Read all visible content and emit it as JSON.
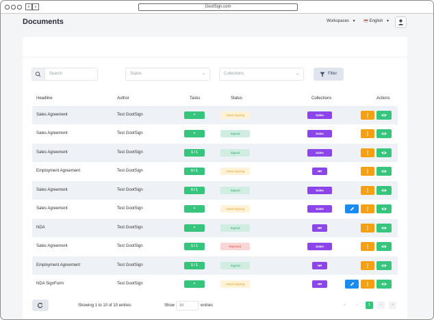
{
  "browser": {
    "url": "GootSign.com"
  },
  "header": {
    "title": "Documents",
    "workspaces_label": "Workspaces",
    "language_label": "English"
  },
  "filters": {
    "search_placeholder": "Search",
    "status_placeholder": "Status",
    "collections_placeholder": "Collections",
    "filter_label": "Filter"
  },
  "table": {
    "columns": [
      "Headline",
      "Author",
      "Tasks",
      "Status",
      "Collections",
      "Actions"
    ],
    "rows": [
      {
        "headline": "Sales Agreement",
        "author": "Test GootSign",
        "task": "+",
        "status": "Await Signing",
        "status_type": "await",
        "collection": "Sales",
        "edit": false
      },
      {
        "headline": "Sales Agreement",
        "author": "Test GootSign",
        "task": "+",
        "status": "Signed",
        "status_type": "signed",
        "collection": "Sales",
        "edit": false
      },
      {
        "headline": "Sales Agreement",
        "author": "Test GootSign",
        "task": "1 / 1",
        "status": "Signed",
        "status_type": "signed",
        "collection": "Sales",
        "edit": false
      },
      {
        "headline": "Employment Agreement",
        "author": "Test GootSign",
        "task": "0 / 1",
        "status": "Await Signing",
        "status_type": "await",
        "collection": "HR",
        "edit": false
      },
      {
        "headline": "Sales Agreement",
        "author": "Test GootSign",
        "task": "0 / 1",
        "status": "Signed",
        "status_type": "signed",
        "collection": "Sales",
        "edit": false
      },
      {
        "headline": "Sales Agreement",
        "author": "Test GootSign",
        "task": "+",
        "status": "Await Signing",
        "status_type": "await",
        "collection": "Sales",
        "edit": true
      },
      {
        "headline": "NDA",
        "author": "Test GootSign",
        "task": "+",
        "status": "Signed",
        "status_type": "signed",
        "collection": "HR",
        "edit": false
      },
      {
        "headline": "Sales Agreement",
        "author": "Test GootSign",
        "task": "1 / 1",
        "status": "Rejected",
        "status_type": "rejected",
        "collection": "Sales",
        "edit": false
      },
      {
        "headline": "Employment Agreement",
        "author": "Test GootSign",
        "task": "1 / 1",
        "status": "Signed",
        "status_type": "signed",
        "collection": "HR",
        "edit": false
      },
      {
        "headline": "NDA SignForm",
        "author": "Test GootSign",
        "task": "+",
        "status": "Await Signing",
        "status_type": "await",
        "collection": "HR",
        "edit": true
      }
    ]
  },
  "footer": {
    "showing_text": "Showing 1 to 10 of 10 entries",
    "show_label": "Show",
    "page_size": "10",
    "entries_label": "entries",
    "pagination": {
      "first": "«",
      "prev": "‹",
      "current": "1",
      "next": "›",
      "last": "»"
    }
  },
  "colors": {
    "green": "#37c47c",
    "orange": "#f5a011",
    "blue": "#1a8cf0",
    "purple": "#8b45e8"
  }
}
